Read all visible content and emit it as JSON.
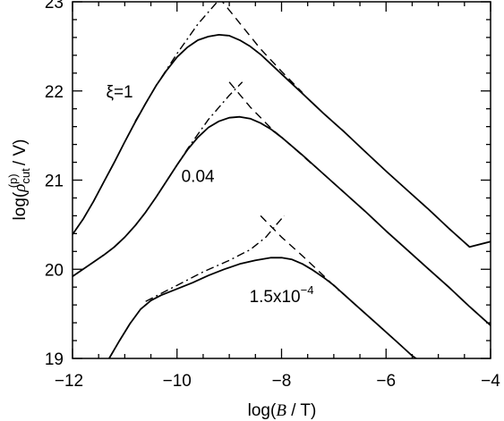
{
  "chart_data": {
    "type": "line",
    "title": "",
    "xlabel": {
      "prefix": "log(",
      "var": "B",
      "suffix": " / T)"
    },
    "ylabel": {
      "prefix": "log(",
      "var": "ρ",
      "sub": "cut",
      "sup": "(p)",
      "suffix": " / V)"
    },
    "xlim": [
      -12,
      -4
    ],
    "ylim": [
      19,
      23
    ],
    "xticks": [
      -12,
      -10,
      -8,
      -6,
      -4
    ],
    "xtick_labels": [
      "−12",
      "−10",
      "−8",
      "−6",
      "−4"
    ],
    "yticks": [
      19,
      20,
      21,
      22,
      23
    ],
    "ytick_labels": [
      "19",
      "20",
      "21",
      "22",
      "23"
    ],
    "grid": false,
    "annotations": [
      {
        "label": "ξ=1",
        "x": -11.1,
        "y": 22.0
      },
      {
        "label": "0.04",
        "x": -9.6,
        "y": 21.05
      },
      {
        "label": "1.5x10",
        "sup": "−4",
        "x": -8.0,
        "y": 19.7
      }
    ],
    "series": [
      {
        "group": "ξ=1",
        "style": "solid",
        "points": [
          [
            -12.0,
            20.39
          ],
          [
            -11.8,
            20.56
          ],
          [
            -11.6,
            20.76
          ],
          [
            -11.4,
            20.98
          ],
          [
            -11.2,
            21.2
          ],
          [
            -11.0,
            21.43
          ],
          [
            -10.8,
            21.65
          ],
          [
            -10.6,
            21.86
          ],
          [
            -10.4,
            22.06
          ],
          [
            -10.2,
            22.23
          ],
          [
            -10.0,
            22.38
          ],
          [
            -9.8,
            22.49
          ],
          [
            -9.6,
            22.57
          ],
          [
            -9.4,
            22.61
          ],
          [
            -9.2,
            22.63
          ],
          [
            -9.0,
            22.62
          ],
          [
            -8.8,
            22.57
          ],
          [
            -8.6,
            22.5
          ],
          [
            -8.4,
            22.41
          ],
          [
            -8.2,
            22.3
          ],
          [
            -8.0,
            22.19
          ],
          [
            -7.6,
            21.97
          ],
          [
            -7.2,
            21.75
          ],
          [
            -6.8,
            21.54
          ],
          [
            -6.4,
            21.32
          ],
          [
            -6.0,
            21.1
          ],
          [
            -5.6,
            20.89
          ],
          [
            -5.2,
            20.68
          ],
          [
            -4.8,
            20.46
          ],
          [
            -4.4,
            20.25
          ],
          [
            -4.0,
            20.31
          ]
        ]
      },
      {
        "group": "ξ=1",
        "style": "dashdot",
        "points": [
          [
            -10.8,
            21.66
          ],
          [
            -10.4,
            22.06
          ],
          [
            -10.0,
            22.42
          ],
          [
            -9.6,
            22.75
          ],
          [
            -9.2,
            23.02
          ],
          [
            -9.05,
            23.1
          ]
        ]
      },
      {
        "group": "ξ=1",
        "style": "dashed",
        "points": [
          [
            -9.2,
            23.05
          ],
          [
            -8.8,
            22.76
          ],
          [
            -8.4,
            22.47
          ],
          [
            -8.0,
            22.22
          ],
          [
            -7.6,
            21.98
          ]
        ]
      },
      {
        "group": "0.04",
        "style": "solid",
        "points": [
          [
            -12.0,
            19.92
          ],
          [
            -11.8,
            20.0
          ],
          [
            -11.6,
            20.08
          ],
          [
            -11.4,
            20.16
          ],
          [
            -11.2,
            20.25
          ],
          [
            -11.0,
            20.36
          ],
          [
            -10.8,
            20.49
          ],
          [
            -10.6,
            20.64
          ],
          [
            -10.4,
            20.81
          ],
          [
            -10.2,
            20.99
          ],
          [
            -10.0,
            21.17
          ],
          [
            -9.8,
            21.34
          ],
          [
            -9.6,
            21.48
          ],
          [
            -9.4,
            21.59
          ],
          [
            -9.2,
            21.66
          ],
          [
            -9.0,
            21.7
          ],
          [
            -8.8,
            21.71
          ],
          [
            -8.6,
            21.69
          ],
          [
            -8.4,
            21.64
          ],
          [
            -8.2,
            21.57
          ],
          [
            -8.0,
            21.48
          ],
          [
            -7.6,
            21.28
          ],
          [
            -7.2,
            21.07
          ],
          [
            -6.8,
            20.86
          ],
          [
            -6.4,
            20.65
          ],
          [
            -6.0,
            20.43
          ],
          [
            -5.6,
            20.22
          ],
          [
            -5.2,
            20.01
          ],
          [
            -4.8,
            19.8
          ],
          [
            -4.4,
            19.58
          ],
          [
            -4.0,
            19.37
          ]
        ]
      },
      {
        "group": "0.04",
        "style": "dashdot",
        "points": [
          [
            -10.2,
            20.99
          ],
          [
            -9.8,
            21.35
          ],
          [
            -9.4,
            21.68
          ],
          [
            -9.0,
            21.95
          ],
          [
            -8.75,
            22.1
          ]
        ]
      },
      {
        "group": "0.04",
        "style": "dashed",
        "points": [
          [
            -9.0,
            22.1
          ],
          [
            -8.6,
            21.82
          ],
          [
            -8.2,
            21.58
          ],
          [
            -7.8,
            21.38
          ],
          [
            -7.4,
            21.17
          ]
        ]
      },
      {
        "group": "1.5x10^-4",
        "style": "solid",
        "points": [
          [
            -11.3,
            19.0
          ],
          [
            -11.1,
            19.2
          ],
          [
            -10.9,
            19.39
          ],
          [
            -10.7,
            19.55
          ],
          [
            -10.5,
            19.65
          ],
          [
            -10.3,
            19.71
          ],
          [
            -10.0,
            19.78
          ],
          [
            -9.7,
            19.85
          ],
          [
            -9.4,
            19.93
          ],
          [
            -9.1,
            20.0
          ],
          [
            -8.8,
            20.06
          ],
          [
            -8.5,
            20.1
          ],
          [
            -8.2,
            20.13
          ],
          [
            -8.0,
            20.13
          ],
          [
            -7.8,
            20.11
          ],
          [
            -7.6,
            20.06
          ],
          [
            -7.4,
            19.99
          ],
          [
            -7.2,
            19.91
          ],
          [
            -7.0,
            19.82
          ],
          [
            -6.6,
            19.61
          ],
          [
            -6.2,
            19.4
          ],
          [
            -5.8,
            19.19
          ],
          [
            -5.5,
            19.03
          ],
          [
            -5.3,
            18.95
          ]
        ]
      },
      {
        "group": "1.5x10^-4",
        "style": "dashdot",
        "points": [
          [
            -10.6,
            19.64
          ],
          [
            -10.0,
            19.82
          ],
          [
            -9.5,
            19.97
          ],
          [
            -9.0,
            20.1
          ],
          [
            -8.6,
            20.22
          ],
          [
            -8.3,
            20.36
          ],
          [
            -8.1,
            20.5
          ],
          [
            -7.95,
            20.6
          ]
        ]
      },
      {
        "group": "1.5x10^-4",
        "style": "dashed",
        "points": [
          [
            -8.4,
            20.6
          ],
          [
            -8.0,
            20.36
          ],
          [
            -7.6,
            20.15
          ],
          [
            -7.2,
            19.93
          ],
          [
            -6.9,
            19.76
          ]
        ]
      }
    ]
  }
}
